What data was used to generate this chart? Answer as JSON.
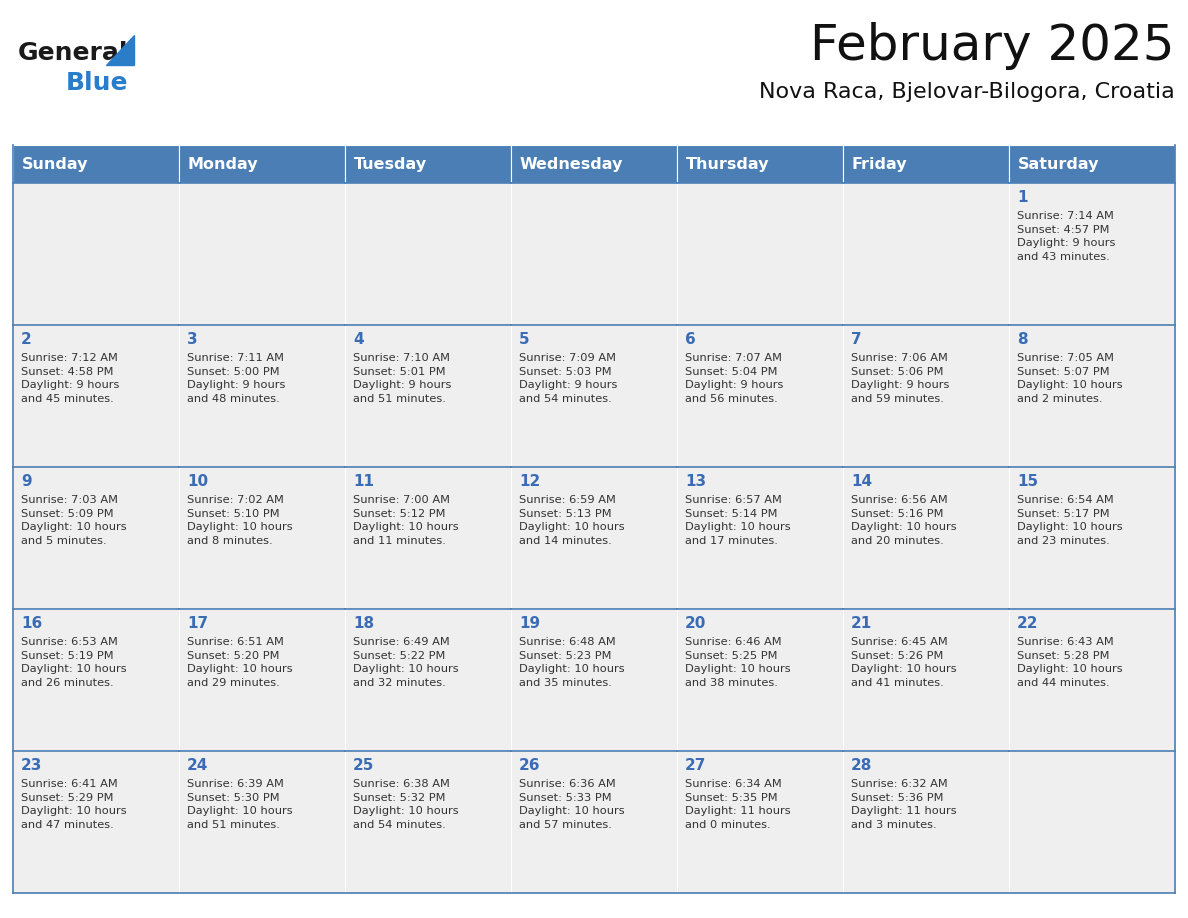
{
  "title": "February 2025",
  "subtitle": "Nova Raca, Bjelovar-Bilogora, Croatia",
  "header_color": "#4a7eb5",
  "header_text_color": "#ffffff",
  "cell_bg_color": "#efefef",
  "cell_border_color": "#ffffff",
  "day_number_color": "#3a6bb5",
  "text_color": "#333333",
  "line_color": "#4a7eb5",
  "days_of_week": [
    "Sunday",
    "Monday",
    "Tuesday",
    "Wednesday",
    "Thursday",
    "Friday",
    "Saturday"
  ],
  "weeks": [
    [
      {
        "day": null,
        "info": null
      },
      {
        "day": null,
        "info": null
      },
      {
        "day": null,
        "info": null
      },
      {
        "day": null,
        "info": null
      },
      {
        "day": null,
        "info": null
      },
      {
        "day": null,
        "info": null
      },
      {
        "day": 1,
        "info": "Sunrise: 7:14 AM\nSunset: 4:57 PM\nDaylight: 9 hours\nand 43 minutes."
      }
    ],
    [
      {
        "day": 2,
        "info": "Sunrise: 7:12 AM\nSunset: 4:58 PM\nDaylight: 9 hours\nand 45 minutes."
      },
      {
        "day": 3,
        "info": "Sunrise: 7:11 AM\nSunset: 5:00 PM\nDaylight: 9 hours\nand 48 minutes."
      },
      {
        "day": 4,
        "info": "Sunrise: 7:10 AM\nSunset: 5:01 PM\nDaylight: 9 hours\nand 51 minutes."
      },
      {
        "day": 5,
        "info": "Sunrise: 7:09 AM\nSunset: 5:03 PM\nDaylight: 9 hours\nand 54 minutes."
      },
      {
        "day": 6,
        "info": "Sunrise: 7:07 AM\nSunset: 5:04 PM\nDaylight: 9 hours\nand 56 minutes."
      },
      {
        "day": 7,
        "info": "Sunrise: 7:06 AM\nSunset: 5:06 PM\nDaylight: 9 hours\nand 59 minutes."
      },
      {
        "day": 8,
        "info": "Sunrise: 7:05 AM\nSunset: 5:07 PM\nDaylight: 10 hours\nand 2 minutes."
      }
    ],
    [
      {
        "day": 9,
        "info": "Sunrise: 7:03 AM\nSunset: 5:09 PM\nDaylight: 10 hours\nand 5 minutes."
      },
      {
        "day": 10,
        "info": "Sunrise: 7:02 AM\nSunset: 5:10 PM\nDaylight: 10 hours\nand 8 minutes."
      },
      {
        "day": 11,
        "info": "Sunrise: 7:00 AM\nSunset: 5:12 PM\nDaylight: 10 hours\nand 11 minutes."
      },
      {
        "day": 12,
        "info": "Sunrise: 6:59 AM\nSunset: 5:13 PM\nDaylight: 10 hours\nand 14 minutes."
      },
      {
        "day": 13,
        "info": "Sunrise: 6:57 AM\nSunset: 5:14 PM\nDaylight: 10 hours\nand 17 minutes."
      },
      {
        "day": 14,
        "info": "Sunrise: 6:56 AM\nSunset: 5:16 PM\nDaylight: 10 hours\nand 20 minutes."
      },
      {
        "day": 15,
        "info": "Sunrise: 6:54 AM\nSunset: 5:17 PM\nDaylight: 10 hours\nand 23 minutes."
      }
    ],
    [
      {
        "day": 16,
        "info": "Sunrise: 6:53 AM\nSunset: 5:19 PM\nDaylight: 10 hours\nand 26 minutes."
      },
      {
        "day": 17,
        "info": "Sunrise: 6:51 AM\nSunset: 5:20 PM\nDaylight: 10 hours\nand 29 minutes."
      },
      {
        "day": 18,
        "info": "Sunrise: 6:49 AM\nSunset: 5:22 PM\nDaylight: 10 hours\nand 32 minutes."
      },
      {
        "day": 19,
        "info": "Sunrise: 6:48 AM\nSunset: 5:23 PM\nDaylight: 10 hours\nand 35 minutes."
      },
      {
        "day": 20,
        "info": "Sunrise: 6:46 AM\nSunset: 5:25 PM\nDaylight: 10 hours\nand 38 minutes."
      },
      {
        "day": 21,
        "info": "Sunrise: 6:45 AM\nSunset: 5:26 PM\nDaylight: 10 hours\nand 41 minutes."
      },
      {
        "day": 22,
        "info": "Sunrise: 6:43 AM\nSunset: 5:28 PM\nDaylight: 10 hours\nand 44 minutes."
      }
    ],
    [
      {
        "day": 23,
        "info": "Sunrise: 6:41 AM\nSunset: 5:29 PM\nDaylight: 10 hours\nand 47 minutes."
      },
      {
        "day": 24,
        "info": "Sunrise: 6:39 AM\nSunset: 5:30 PM\nDaylight: 10 hours\nand 51 minutes."
      },
      {
        "day": 25,
        "info": "Sunrise: 6:38 AM\nSunset: 5:32 PM\nDaylight: 10 hours\nand 54 minutes."
      },
      {
        "day": 26,
        "info": "Sunrise: 6:36 AM\nSunset: 5:33 PM\nDaylight: 10 hours\nand 57 minutes."
      },
      {
        "day": 27,
        "info": "Sunrise: 6:34 AM\nSunset: 5:35 PM\nDaylight: 11 hours\nand 0 minutes."
      },
      {
        "day": 28,
        "info": "Sunrise: 6:32 AM\nSunset: 5:36 PM\nDaylight: 11 hours\nand 3 minutes."
      },
      {
        "day": null,
        "info": null
      }
    ]
  ],
  "logo_general_color": "#1a1a1a",
  "logo_blue_color": "#2a7dc9",
  "logo_triangle_color": "#2a7dc9",
  "fig_width": 11.88,
  "fig_height": 9.18,
  "dpi": 100
}
